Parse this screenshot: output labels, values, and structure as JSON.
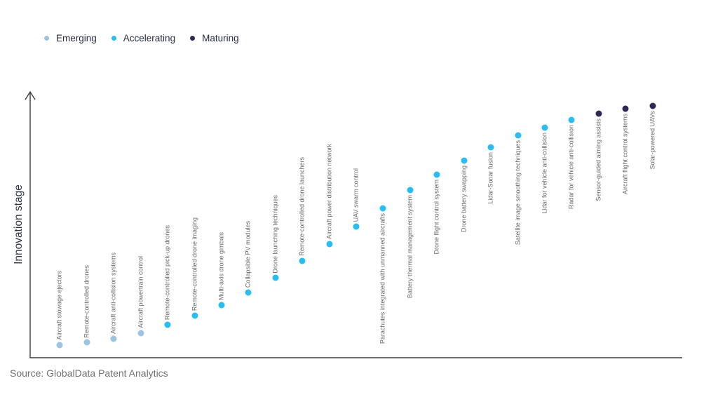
{
  "legend": {
    "items": [
      {
        "label": "Emerging",
        "color": "#9ac4e0"
      },
      {
        "label": "Accelerating",
        "color": "#2abdf2"
      },
      {
        "label": "Maturing",
        "color": "#2e2957"
      }
    ]
  },
  "chart": {
    "ylabel": "Innovation stage",
    "source": "Source: GlobalData Patent Analytics"
  },
  "chart_data": {
    "type": "scatter",
    "title": "",
    "xlabel": "",
    "ylabel": "Innovation stage",
    "y_axis": {
      "min": 0,
      "max": 100,
      "numeric_ticks": false,
      "arrow": true
    },
    "grid": false,
    "legend_position": "top-left",
    "stages": [
      "Emerging",
      "Accelerating",
      "Maturing"
    ],
    "points": [
      {
        "label": "Aircraft stowage ejectors",
        "stage": "Emerging",
        "level": 4.8
      },
      {
        "label": "Remote-controlled drones",
        "stage": "Emerging",
        "level": 5.8
      },
      {
        "label": "Aircraft anti-collision systems",
        "stage": "Emerging",
        "level": 7.2
      },
      {
        "label": "Aircraft powertrain control",
        "stage": "Emerging",
        "level": 9.3
      },
      {
        "label": "Remote-controlled pick-up drones",
        "stage": "Accelerating",
        "level": 12.5
      },
      {
        "label": "Remote-controlled drone imaging",
        "stage": "Accelerating",
        "level": 15.9
      },
      {
        "label": "Multi-axis drone gimbals",
        "stage": "Accelerating",
        "level": 19.9
      },
      {
        "label": "Collapsible PV modules",
        "stage": "Accelerating",
        "level": 24.7
      },
      {
        "label": "Drone launching techniques",
        "stage": "Accelerating",
        "level": 30.2
      },
      {
        "label": "Remote-controlled drone launchers",
        "stage": "Accelerating",
        "level": 36.6
      },
      {
        "label": "Aircraft power distribution network",
        "stage": "Accelerating",
        "level": 43.0
      },
      {
        "label": "UAV swarm control",
        "stage": "Accelerating",
        "level": 49.6
      },
      {
        "label": "Parachutes integrated with unmanned aircrafts",
        "stage": "Accelerating",
        "level": 56.5
      },
      {
        "label": "Battery thermal management system",
        "stage": "Accelerating",
        "level": 63.4
      },
      {
        "label": "Drone flight control system",
        "stage": "Accelerating",
        "level": 69.2
      },
      {
        "label": "Drone battery swapping",
        "stage": "Accelerating",
        "level": 74.5
      },
      {
        "label": "Lidar-Sonar fusion",
        "stage": "Accelerating",
        "level": 79.6
      },
      {
        "label": "Satellite image smoothing techniques",
        "stage": "Accelerating",
        "level": 84.1
      },
      {
        "label": "Lidar for vehicle anti-collision",
        "stage": "Accelerating",
        "level": 87.0
      },
      {
        "label": "Radar for vehicle anti-collision",
        "stage": "Accelerating",
        "level": 89.9
      },
      {
        "label": "Sensor-guided aiming assists",
        "stage": "Maturing",
        "level": 92.3
      },
      {
        "label": "Aircraft flight control systems",
        "stage": "Maturing",
        "level": 94.2
      },
      {
        "label": "Solar-powered UAVs",
        "stage": "Maturing",
        "level": 95.2
      }
    ]
  }
}
